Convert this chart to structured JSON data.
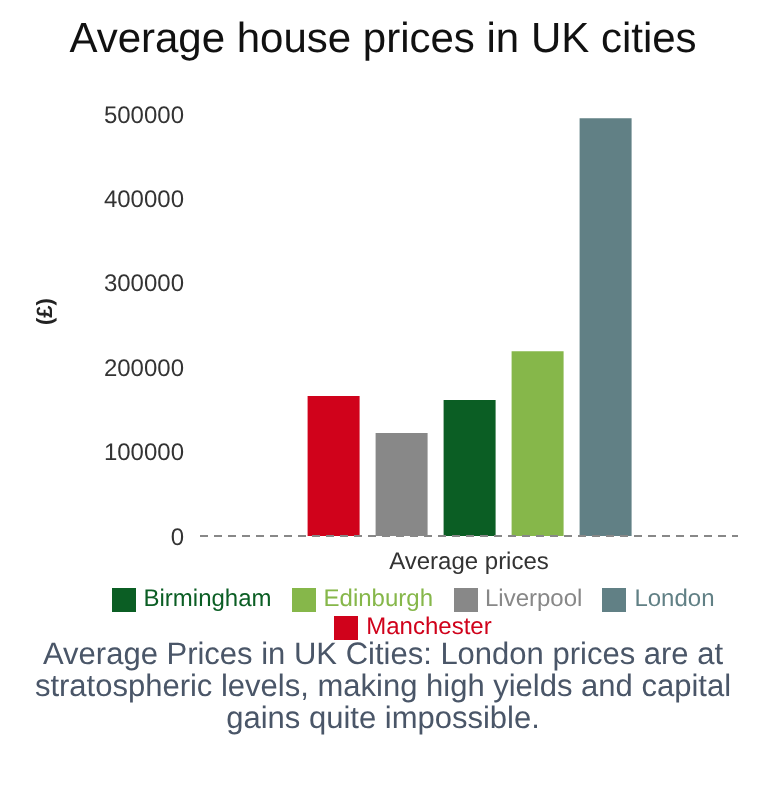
{
  "chart_data": {
    "type": "bar",
    "title": "Average house prices in UK cities",
    "ylabel": "(£)",
    "categories": [
      "Average prices"
    ],
    "series": [
      {
        "name": "Manchester",
        "color": "#d0021b",
        "values": [
          166000
        ]
      },
      {
        "name": "Liverpool",
        "color": "#888888",
        "values": [
          122000
        ]
      },
      {
        "name": "Birmingham",
        "color": "#0b5e24",
        "values": [
          161000
        ]
      },
      {
        "name": "Edinburgh",
        "color": "#86b74a",
        "values": [
          219000
        ]
      },
      {
        "name": "London",
        "color": "#618085",
        "values": [
          495000
        ]
      }
    ],
    "ylim": [
      0,
      500000
    ],
    "yticks": [
      0,
      100000,
      200000,
      300000,
      400000,
      500000
    ],
    "grid": false,
    "legend": "bottom",
    "annotations": [
      "Average Prices in UK Cities: London prices are at stratospheric levels, making high yields and capital gains quite impossible."
    ]
  }
}
